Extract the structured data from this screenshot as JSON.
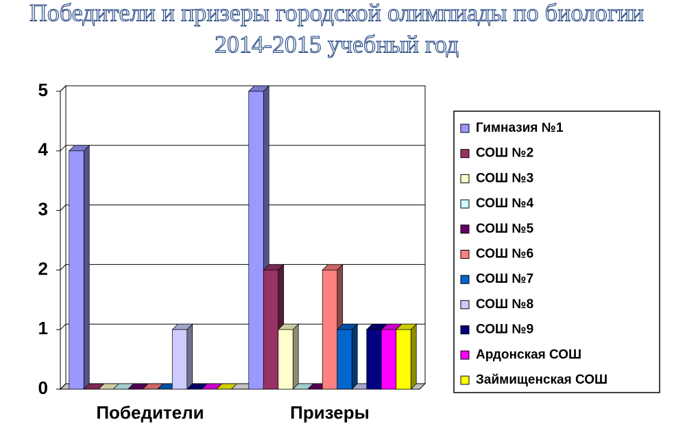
{
  "chart_data": {
    "type": "bar3d",
    "title": "Победители и призеры городской олимпиады по биологии",
    "subtitle": "2014-2015 учебный год",
    "categories": [
      "Победители",
      "Призеры"
    ],
    "series": [
      {
        "name": "Гимназия №1",
        "color": "#9999ff",
        "values": [
          4,
          5
        ]
      },
      {
        "name": "СОШ №2",
        "color": "#993366",
        "values": [
          0,
          2
        ]
      },
      {
        "name": "СОШ №3",
        "color": "#ffffcc",
        "values": [
          0,
          1
        ]
      },
      {
        "name": "СОШ №4",
        "color": "#ccffff",
        "values": [
          0,
          0
        ]
      },
      {
        "name": "СОШ №5",
        "color": "#660066",
        "values": [
          0,
          0
        ]
      },
      {
        "name": "СОШ №6",
        "color": "#ff8080",
        "values": [
          0,
          2
        ]
      },
      {
        "name": "СОШ №7",
        "color": "#0066cc",
        "values": [
          0,
          1
        ]
      },
      {
        "name": "СОШ №8",
        "color": "#ccccff",
        "values": [
          1,
          0
        ]
      },
      {
        "name": "СОШ №9",
        "color": "#000080",
        "values": [
          0,
          1
        ]
      },
      {
        "name": "Ардонская СОШ",
        "color": "#ff00ff",
        "values": [
          0,
          1
        ]
      },
      {
        "name": "Займищенская СОШ",
        "color": "#ffff00",
        "values": [
          0,
          1
        ]
      }
    ],
    "ylim": [
      0,
      5
    ],
    "yticks": [
      0,
      1,
      2,
      3,
      4,
      5
    ],
    "grid": true,
    "legend": "right"
  }
}
